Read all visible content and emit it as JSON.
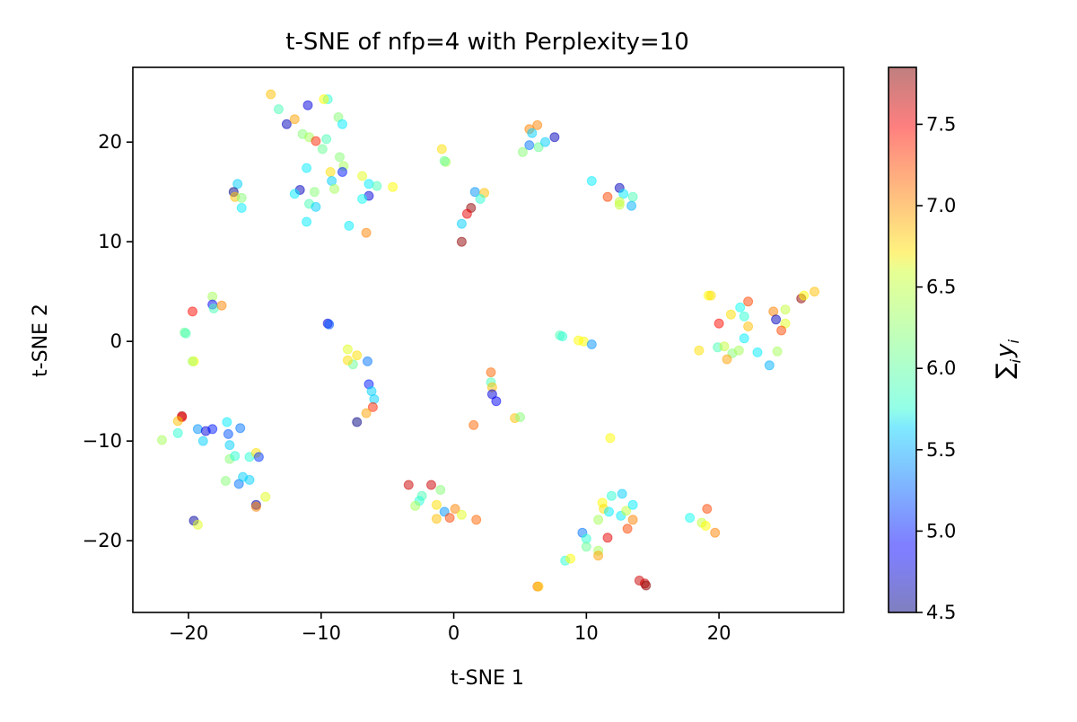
{
  "chart_data": {
    "type": "scatter",
    "title": "t-SNE of nfp=4 with Perplexity=10",
    "xlabel": "t-SNE 1",
    "ylabel": "t-SNE 2",
    "xlim": [
      -24.2,
      29.4
    ],
    "ylim": [
      -27.2,
      27.5
    ],
    "xticks": [
      -20,
      -10,
      0,
      10,
      20
    ],
    "yticks": [
      -20,
      -10,
      0,
      10,
      20
    ],
    "grid": false,
    "colormap": "jet",
    "point_alpha": 0.5,
    "colorbar": {
      "label": "∑ y",
      "label_subscripts": {
        "sum": "i",
        "y": "i"
      },
      "min": 4.5,
      "max": 7.85,
      "ticks": [
        4.5,
        5.0,
        5.5,
        6.0,
        6.5,
        7.0,
        7.5
      ]
    },
    "points": [
      [
        -13.8,
        24.8,
        6.8
      ],
      [
        -13.2,
        23.3,
        6.0
      ],
      [
        -12.6,
        21.8,
        4.7
      ],
      [
        -12.0,
        22.3,
        6.9
      ],
      [
        -11.0,
        23.7,
        4.8
      ],
      [
        -9.5,
        24.3,
        5.9
      ],
      [
        -9.8,
        24.3,
        6.6
      ],
      [
        -8.7,
        22.5,
        6.2
      ],
      [
        -8.4,
        21.8,
        5.7
      ],
      [
        -11.4,
        20.8,
        6.2
      ],
      [
        -10.9,
        20.5,
        6.3
      ],
      [
        -10.4,
        20.1,
        7.3
      ],
      [
        -9.6,
        20.3,
        6.0
      ],
      [
        -9.9,
        19.3,
        6.1
      ],
      [
        -8.6,
        18.5,
        6.2
      ],
      [
        -8.3,
        17.6,
        6.3
      ],
      [
        -8.4,
        17.0,
        5.0
      ],
      [
        -9.3,
        17.0,
        6.7
      ],
      [
        -11.1,
        17.4,
        5.7
      ],
      [
        -6.9,
        16.6,
        6.5
      ],
      [
        -9.2,
        16.1,
        5.6
      ],
      [
        -9.0,
        15.3,
        6.3
      ],
      [
        -10.5,
        15.0,
        6.2
      ],
      [
        -11.6,
        15.2,
        4.7
      ],
      [
        -12.0,
        14.8,
        5.7
      ],
      [
        -6.4,
        15.8,
        5.7
      ],
      [
        -6.4,
        14.6,
        4.8
      ],
      [
        -5.8,
        15.6,
        6.0
      ],
      [
        -4.6,
        15.5,
        6.6
      ],
      [
        -6.9,
        14.3,
        5.8
      ],
      [
        -10.9,
        13.8,
        6.0
      ],
      [
        -10.4,
        13.5,
        5.6
      ],
      [
        -11.1,
        12.0,
        5.7
      ],
      [
        -7.9,
        11.6,
        5.7
      ],
      [
        -6.6,
        10.9,
        7.0
      ],
      [
        -16.3,
        15.8,
        5.6
      ],
      [
        -16.6,
        15.0,
        4.5
      ],
      [
        -16.5,
        14.5,
        6.8
      ],
      [
        -16.0,
        14.4,
        6.2
      ],
      [
        -16.0,
        13.4,
        5.7
      ],
      [
        -0.9,
        19.3,
        6.7
      ],
      [
        -0.6,
        18.0,
        6.3
      ],
      [
        -0.7,
        18.1,
        6.1
      ],
      [
        5.7,
        21.3,
        7.0
      ],
      [
        6.3,
        21.7,
        7.0
      ],
      [
        5.9,
        20.9,
        5.6
      ],
      [
        5.7,
        19.7,
        5.3
      ],
      [
        6.4,
        19.5,
        6.1
      ],
      [
        6.9,
        20.0,
        5.6
      ],
      [
        7.6,
        20.5,
        4.7
      ],
      [
        5.2,
        19.0,
        6.2
      ],
      [
        1.6,
        15.0,
        5.4
      ],
      [
        2.3,
        14.9,
        6.8
      ],
      [
        2.0,
        14.3,
        5.9
      ],
      [
        1.3,
        13.4,
        7.8
      ],
      [
        1.0,
        12.8,
        7.5
      ],
      [
        0.6,
        11.8,
        5.6
      ],
      [
        0.6,
        10.0,
        7.8
      ],
      [
        10.4,
        16.1,
        5.7
      ],
      [
        11.6,
        14.5,
        7.2
      ],
      [
        12.5,
        15.4,
        4.7
      ],
      [
        12.8,
        14.8,
        5.7
      ],
      [
        12.5,
        14.0,
        6.4
      ],
      [
        12.5,
        13.7,
        6.4
      ],
      [
        13.5,
        14.5,
        6.0
      ],
      [
        13.4,
        13.6,
        5.5
      ],
      [
        -18.2,
        4.5,
        6.3
      ],
      [
        -18.2,
        3.7,
        4.9
      ],
      [
        -18.1,
        3.3,
        6.0
      ],
      [
        -17.5,
        3.6,
        7.0
      ],
      [
        -19.7,
        3.0,
        7.4
      ],
      [
        -20.3,
        0.9,
        6.1
      ],
      [
        -20.2,
        0.8,
        6.0
      ],
      [
        -19.6,
        -2.0,
        6.6
      ],
      [
        -19.7,
        -2.0,
        6.3
      ],
      [
        -9.5,
        1.8,
        4.8
      ],
      [
        -9.4,
        1.7,
        5.2
      ],
      [
        -8.0,
        -0.8,
        6.5
      ],
      [
        -7.3,
        -1.4,
        6.7
      ],
      [
        -7.6,
        -2.3,
        6.1
      ],
      [
        -8.0,
        -1.9,
        6.7
      ],
      [
        -6.5,
        -2.0,
        5.3
      ],
      [
        -6.4,
        -4.3,
        5.0
      ],
      [
        -6.2,
        -5.0,
        5.6
      ],
      [
        -6.0,
        -5.8,
        5.6
      ],
      [
        -6.1,
        -6.6,
        7.3
      ],
      [
        -6.6,
        -7.2,
        6.9
      ],
      [
        -7.3,
        -8.1,
        4.5
      ],
      [
        8.0,
        0.6,
        6.0
      ],
      [
        8.2,
        0.5,
        5.9
      ],
      [
        9.4,
        0.1,
        6.6
      ],
      [
        9.8,
        0.0,
        6.6
      ],
      [
        10.4,
        -0.3,
        5.4
      ],
      [
        2.8,
        -3.1,
        7.1
      ],
      [
        2.8,
        -4.1,
        6.0
      ],
      [
        2.9,
        -4.6,
        6.8
      ],
      [
        2.9,
        -5.3,
        4.8
      ],
      [
        3.2,
        -6.0,
        4.9
      ],
      [
        4.6,
        -7.7,
        6.8
      ],
      [
        5.0,
        -7.6,
        6.2
      ],
      [
        1.5,
        -8.4,
        7.1
      ],
      [
        11.8,
        -9.7,
        6.6
      ],
      [
        19.2,
        4.6,
        6.6
      ],
      [
        19.4,
        4.6,
        6.7
      ],
      [
        21.6,
        3.4,
        5.8
      ],
      [
        22.2,
        4.0,
        7.2
      ],
      [
        20.9,
        2.7,
        6.7
      ],
      [
        21.9,
        2.5,
        5.9
      ],
      [
        22.2,
        1.5,
        6.8
      ],
      [
        20.0,
        1.8,
        7.4
      ],
      [
        24.1,
        3.0,
        7.0
      ],
      [
        24.3,
        2.2,
        4.7
      ],
      [
        25.0,
        3.2,
        6.4
      ],
      [
        25.0,
        1.8,
        6.5
      ],
      [
        24.7,
        1.1,
        7.2
      ],
      [
        26.2,
        4.3,
        7.8
      ],
      [
        26.4,
        4.6,
        6.6
      ],
      [
        27.2,
        5.0,
        6.8
      ],
      [
        18.5,
        -0.9,
        6.7
      ],
      [
        19.9,
        -0.6,
        6.0
      ],
      [
        20.4,
        -0.5,
        6.4
      ],
      [
        21.0,
        -1.2,
        6.2
      ],
      [
        21.5,
        -0.9,
        6.3
      ],
      [
        21.9,
        0.3,
        5.7
      ],
      [
        22.9,
        -1.1,
        5.7
      ],
      [
        20.6,
        -1.8,
        6.9
      ],
      [
        23.8,
        -2.4,
        5.5
      ],
      [
        24.4,
        -1.0,
        6.3
      ],
      [
        -20.5,
        -7.5,
        7.7
      ],
      [
        -20.5,
        -7.6,
        7.5
      ],
      [
        -20.8,
        -8.0,
        6.8
      ],
      [
        -20.8,
        -9.2,
        5.9
      ],
      [
        -22.0,
        -9.9,
        6.3
      ],
      [
        -19.3,
        -8.8,
        5.4
      ],
      [
        -18.7,
        -9.0,
        4.8
      ],
      [
        -18.2,
        -8.8,
        5.0
      ],
      [
        -17.1,
        -8.1,
        5.7
      ],
      [
        -16.1,
        -8.7,
        5.3
      ],
      [
        -17.0,
        -9.3,
        5.2
      ],
      [
        -18.9,
        -10.0,
        5.6
      ],
      [
        -16.9,
        -10.4,
        5.6
      ],
      [
        -16.9,
        -11.8,
        6.2
      ],
      [
        -16.5,
        -11.5,
        5.9
      ],
      [
        -15.4,
        -11.6,
        5.9
      ],
      [
        -14.9,
        -11.2,
        6.7
      ],
      [
        -14.7,
        -11.6,
        5.1
      ],
      [
        -17.2,
        -14.0,
        6.2
      ],
      [
        -16.2,
        -14.3,
        5.3
      ],
      [
        -15.9,
        -13.6,
        5.6
      ],
      [
        -15.4,
        -13.9,
        5.6
      ],
      [
        -14.2,
        -15.6,
        6.5
      ],
      [
        -14.9,
        -16.4,
        4.6
      ],
      [
        -14.9,
        -16.6,
        7.0
      ],
      [
        -19.6,
        -18.0,
        4.6
      ],
      [
        -19.3,
        -18.4,
        6.5
      ],
      [
        -3.4,
        -14.4,
        7.6
      ],
      [
        -1.7,
        -14.4,
        7.6
      ],
      [
        -2.4,
        -15.5,
        6.0
      ],
      [
        -2.6,
        -16.0,
        5.9
      ],
      [
        -2.9,
        -16.5,
        6.3
      ],
      [
        -1.0,
        -14.9,
        6.2
      ],
      [
        -1.3,
        -16.4,
        6.7
      ],
      [
        -0.7,
        -17.1,
        5.4
      ],
      [
        -1.3,
        -17.8,
        6.8
      ],
      [
        -0.3,
        -17.7,
        7.2
      ],
      [
        0.1,
        -16.8,
        7.0
      ],
      [
        0.6,
        -17.4,
        6.5
      ],
      [
        1.7,
        -17.9,
        7.1
      ],
      [
        11.2,
        -16.2,
        6.6
      ],
      [
        11.9,
        -15.5,
        5.9
      ],
      [
        12.7,
        -15.3,
        5.6
      ],
      [
        11.3,
        -16.8,
        6.7
      ],
      [
        11.7,
        -17.1,
        5.7
      ],
      [
        12.6,
        -17.5,
        5.7
      ],
      [
        13.0,
        -17.0,
        6.4
      ],
      [
        13.5,
        -16.4,
        5.7
      ],
      [
        13.5,
        -17.9,
        7.0
      ],
      [
        13.1,
        -18.8,
        7.2
      ],
      [
        10.9,
        -17.9,
        6.3
      ],
      [
        11.6,
        -19.7,
        7.5
      ],
      [
        9.7,
        -19.2,
        5.3
      ],
      [
        10.0,
        -19.8,
        5.9
      ],
      [
        10.0,
        -20.6,
        6.1
      ],
      [
        10.9,
        -21.0,
        6.3
      ],
      [
        10.9,
        -21.5,
        6.9
      ],
      [
        8.4,
        -22.0,
        5.9
      ],
      [
        8.8,
        -21.8,
        6.6
      ],
      [
        17.8,
        -17.7,
        5.8
      ],
      [
        18.7,
        -18.2,
        6.4
      ],
      [
        19.0,
        -18.5,
        6.6
      ],
      [
        19.1,
        -16.8,
        7.2
      ],
      [
        19.7,
        -19.2,
        7.0
      ],
      [
        6.3,
        -24.6,
        7.0
      ],
      [
        6.4,
        -24.6,
        6.8
      ],
      [
        14.0,
        -24.0,
        7.6
      ],
      [
        14.4,
        -24.3,
        7.6
      ],
      [
        14.5,
        -24.5,
        7.8
      ]
    ]
  }
}
